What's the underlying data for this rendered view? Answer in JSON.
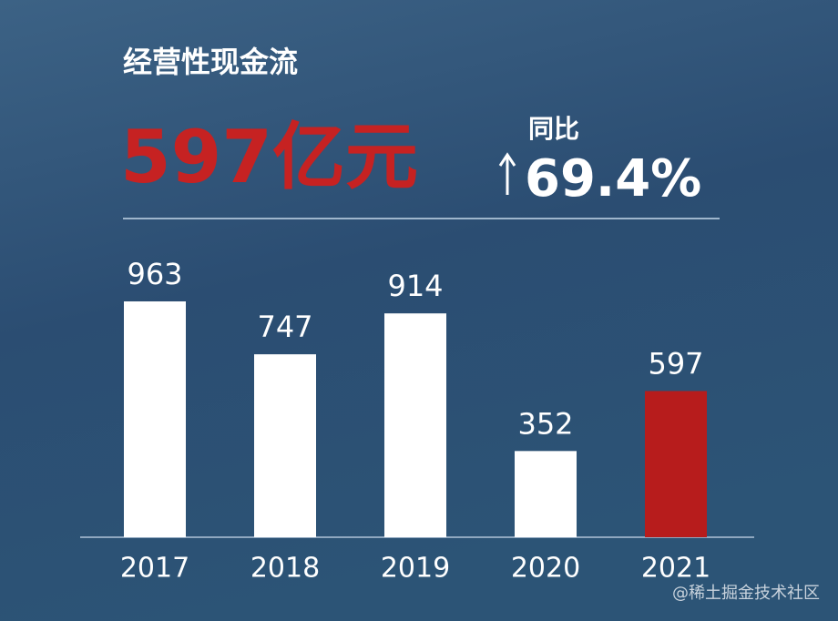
{
  "chart_data": {
    "type": "bar",
    "title": "经营性现金流",
    "headline": "597亿元",
    "comparison_label": "同比",
    "comparison_value": "69.4%",
    "categories": [
      "2017",
      "2018",
      "2019",
      "2020",
      "2021"
    ],
    "values": [
      963,
      747,
      914,
      352,
      597
    ],
    "colors": [
      "#ffffff",
      "#ffffff",
      "#ffffff",
      "#ffffff",
      "#b71c1c"
    ]
  },
  "watermark": "@稀土掘金技术社区"
}
